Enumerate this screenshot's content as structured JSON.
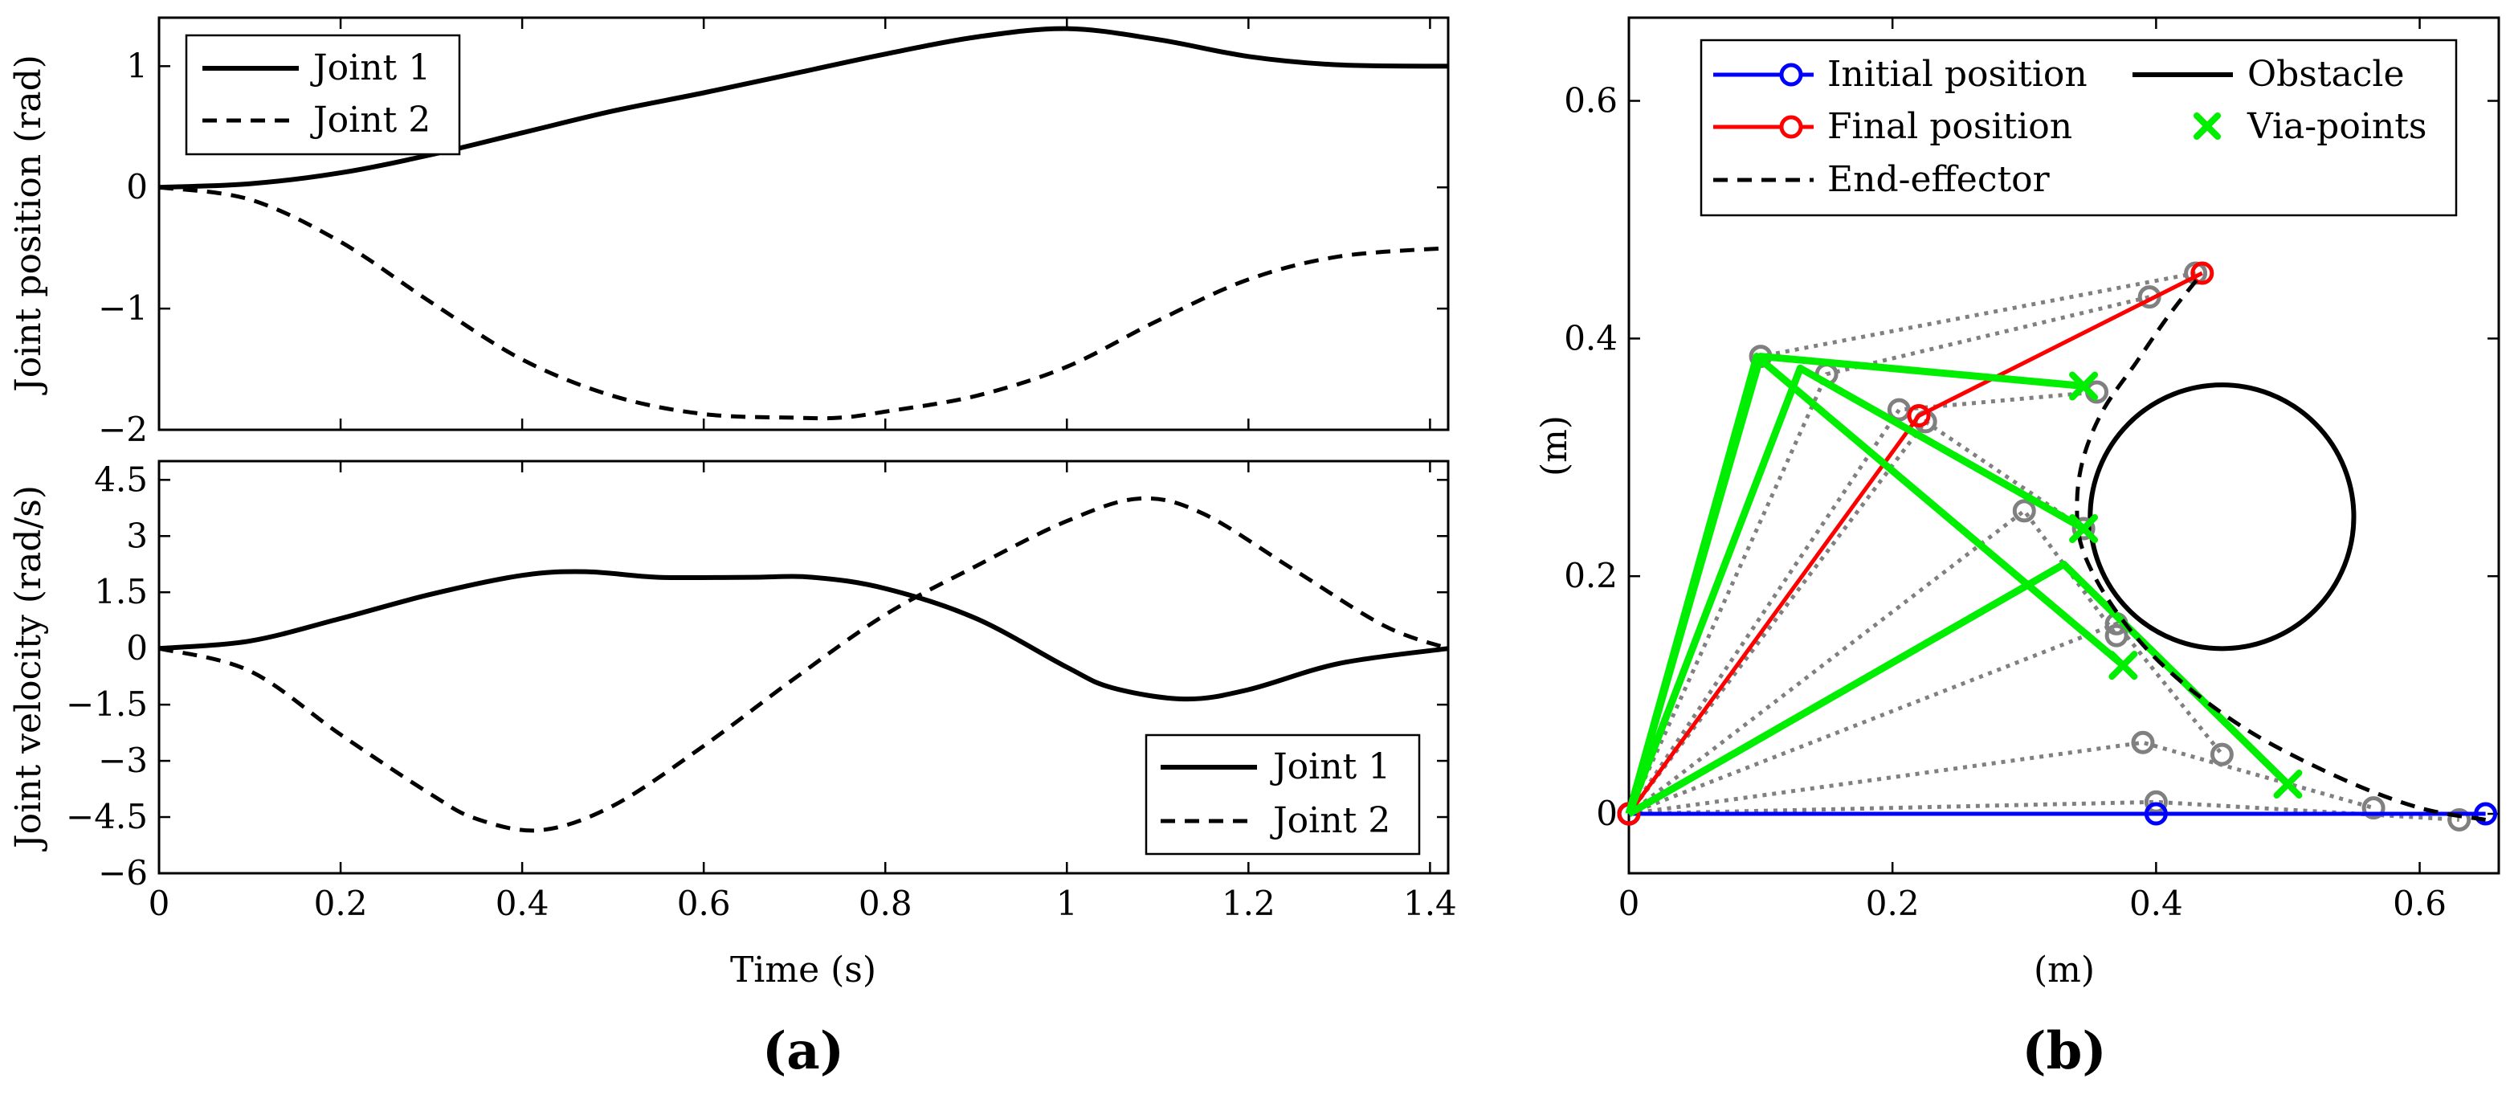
{
  "panels": {
    "a": {
      "label": "(a)"
    },
    "b": {
      "label": "(b)"
    }
  },
  "chart_data": [
    {
      "id": "position",
      "type": "line",
      "ylabel": "Joint position (rad)",
      "xlabel": "",
      "xlim": [
        0,
        1.42
      ],
      "ylim": [
        -2,
        1.4
      ],
      "xticks": [
        0,
        0.2,
        0.4,
        0.6,
        0.8,
        1,
        1.2,
        1.4
      ],
      "xtick_labels": [
        "",
        "",
        "",
        "",
        "",
        "",
        "",
        ""
      ],
      "yticks": [
        1,
        0,
        -1,
        -2
      ],
      "ytick_labels": [
        "1",
        "0",
        "−1",
        "−2"
      ],
      "legend": {
        "position": "top-left",
        "entries": [
          "Joint 1",
          "Joint 2"
        ]
      },
      "series": [
        {
          "name": "Joint 1",
          "style": "solid",
          "x": [
            0,
            0.1,
            0.2,
            0.3,
            0.4,
            0.5,
            0.6,
            0.7,
            0.8,
            0.9,
            1.0,
            1.1,
            1.2,
            1.3,
            1.42
          ],
          "y": [
            0,
            0.03,
            0.12,
            0.27,
            0.45,
            0.63,
            0.78,
            0.94,
            1.1,
            1.24,
            1.31,
            1.22,
            1.08,
            1.01,
            1.0
          ]
        },
        {
          "name": "Joint 2",
          "style": "dashed",
          "x": [
            0,
            0.1,
            0.2,
            0.3,
            0.4,
            0.5,
            0.6,
            0.7,
            0.75,
            0.8,
            0.9,
            1.0,
            1.1,
            1.2,
            1.3,
            1.42
          ],
          "y": [
            0,
            -0.1,
            -0.45,
            -0.95,
            -1.42,
            -1.72,
            -1.87,
            -1.9,
            -1.9,
            -1.85,
            -1.72,
            -1.48,
            -1.1,
            -0.76,
            -0.57,
            -0.5
          ]
        }
      ]
    },
    {
      "id": "velocity",
      "type": "line",
      "ylabel": "Joint velocity (rad/s)",
      "xlabel": "Time (s)",
      "xlim": [
        0,
        1.42
      ],
      "ylim": [
        -6,
        5
      ],
      "xticks": [
        0,
        0.2,
        0.4,
        0.6,
        0.8,
        1,
        1.2,
        1.4
      ],
      "xtick_labels": [
        "0",
        "0.2",
        "0.4",
        "0.6",
        "0.8",
        "1",
        "1.2",
        "1.4"
      ],
      "yticks": [
        4.5,
        3,
        1.5,
        0,
        -1.5,
        -3,
        -4.5,
        -6
      ],
      "ytick_labels": [
        "4.5",
        "3",
        "1.5",
        "0",
        "−1.5",
        "−3",
        "−4.5",
        "−6"
      ],
      "legend": {
        "position": "bottom-right",
        "entries": [
          "Joint 1",
          "Joint 2"
        ]
      },
      "series": [
        {
          "name": "Joint 1",
          "style": "solid",
          "x": [
            0,
            0.1,
            0.2,
            0.3,
            0.4,
            0.47,
            0.55,
            0.65,
            0.72,
            0.8,
            0.9,
            1.0,
            1.05,
            1.13,
            1.2,
            1.3,
            1.42
          ],
          "y": [
            0,
            0.2,
            0.8,
            1.45,
            1.95,
            2.05,
            1.9,
            1.9,
            1.9,
            1.6,
            0.8,
            -0.5,
            -1.05,
            -1.35,
            -1.1,
            -0.4,
            0
          ]
        },
        {
          "name": "Joint 2",
          "style": "dashed",
          "x": [
            0,
            0.1,
            0.2,
            0.3,
            0.35,
            0.42,
            0.5,
            0.6,
            0.7,
            0.8,
            0.9,
            1.0,
            1.08,
            1.15,
            1.25,
            1.35,
            1.42
          ],
          "y": [
            0,
            -0.6,
            -2.3,
            -3.9,
            -4.55,
            -4.85,
            -4.2,
            -2.6,
            -0.8,
            0.9,
            2.2,
            3.4,
            4.0,
            3.6,
            2.1,
            0.6,
            0
          ]
        }
      ]
    },
    {
      "id": "workspace",
      "type": "line",
      "xlabel": "(m)",
      "ylabel": "(m)",
      "xlim": [
        0,
        0.66
      ],
      "ylim": [
        -0.05,
        0.67
      ],
      "xticks": [
        0,
        0.2,
        0.4,
        0.6
      ],
      "xtick_labels": [
        "0",
        "0.2",
        "0.4",
        "0.6"
      ],
      "yticks": [
        0,
        0.2,
        0.4,
        0.6
      ],
      "ytick_labels": [
        "0",
        "0.2",
        "0.4",
        "0.6"
      ],
      "legend": {
        "position": "top",
        "entries": [
          "Initial position",
          "Obstacle",
          "Final position",
          "Via-points",
          "End-effector"
        ]
      },
      "obstacle": {
        "center": [
          0.45,
          0.25
        ],
        "radius": 0.1
      },
      "initial_position": [
        [
          0,
          0
        ],
        [
          0.4,
          0
        ],
        [
          0.65,
          0
        ]
      ],
      "final_position": [
        [
          0,
          0
        ],
        [
          0.22,
          0.335
        ],
        [
          0.435,
          0.455
        ]
      ],
      "via_points": [
        [
          0.5,
          0.025
        ],
        [
          0.375,
          0.125
        ],
        [
          0.345,
          0.24
        ],
        [
          0.345,
          0.36
        ]
      ],
      "via_configurations": [
        [
          [
            0,
            0
          ],
          [
            0.33,
            0.21
          ],
          [
            0.5,
            0.025
          ]
        ],
        [
          [
            0,
            0
          ],
          [
            0.097,
            0.385
          ],
          [
            0.375,
            0.125
          ]
        ],
        [
          [
            0,
            0
          ],
          [
            0.13,
            0.375
          ],
          [
            0.345,
            0.24
          ]
        ],
        [
          [
            0,
            0
          ],
          [
            0.1,
            0.385
          ],
          [
            0.345,
            0.36
          ]
        ]
      ],
      "intermediate_configurations": [
        [
          [
            0,
            0
          ],
          [
            0.4,
            0.01
          ],
          [
            0.63,
            -0.005
          ]
        ],
        [
          [
            0,
            0
          ],
          [
            0.39,
            0.06
          ],
          [
            0.565,
            0.005
          ]
        ],
        [
          [
            0,
            0
          ],
          [
            0.37,
            0.16
          ],
          [
            0.45,
            0.05
          ]
        ],
        [
          [
            0,
            0
          ],
          [
            0.3,
            0.255
          ],
          [
            0.37,
            0.15
          ]
        ],
        [
          [
            0,
            0
          ],
          [
            0.225,
            0.33
          ],
          [
            0.345,
            0.24
          ]
        ],
        [
          [
            0,
            0
          ],
          [
            0.205,
            0.34
          ],
          [
            0.355,
            0.355
          ]
        ],
        [
          [
            0,
            0
          ],
          [
            0.15,
            0.37
          ],
          [
            0.395,
            0.435
          ]
        ],
        [
          [
            0,
            0
          ],
          [
            0.1,
            0.385
          ],
          [
            0.43,
            0.455
          ]
        ]
      ],
      "end_effector": {
        "x": [
          0.65,
          0.6,
          0.54,
          0.47,
          0.41,
          0.37,
          0.345,
          0.34,
          0.345,
          0.36,
          0.385,
          0.41,
          0.435
        ],
        "y": [
          -0.005,
          0.005,
          0.03,
          0.07,
          0.12,
          0.17,
          0.22,
          0.26,
          0.3,
          0.34,
          0.38,
          0.42,
          0.455
        ]
      }
    }
  ]
}
